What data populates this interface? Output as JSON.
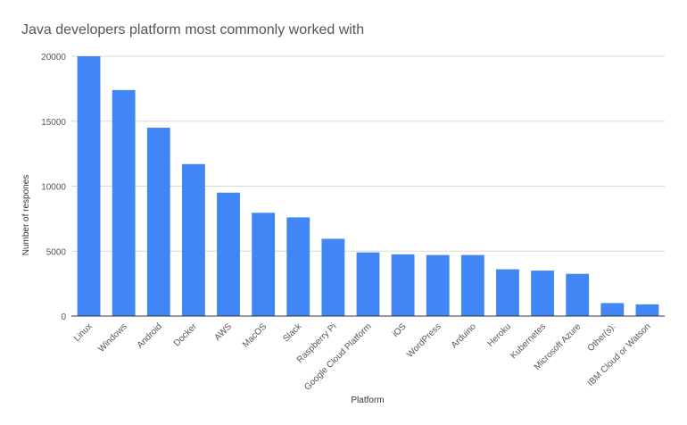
{
  "chart_data": {
    "type": "bar",
    "title": "Java developers platform most commonly worked with",
    "xlabel": "Platform",
    "ylabel": "Number of respones",
    "categories": [
      "Linux",
      "Windows",
      "Android",
      "Docker",
      "AWS",
      "MacOS",
      "Slack",
      "Raspberry Pi",
      "Google Cloud Platform",
      "iOS",
      "WordPress",
      "Arduino",
      "Heroku",
      "Kubernetes",
      "Microsoft Azure",
      "Other(s):",
      "IBM Cloud or Watson"
    ],
    "values": [
      20000,
      17400,
      14500,
      11700,
      9500,
      7950,
      7600,
      5950,
      4900,
      4750,
      4700,
      4700,
      3600,
      3500,
      3250,
      1000,
      900
    ],
    "ylim": [
      0,
      20000
    ],
    "yticks": [
      0,
      5000,
      10000,
      15000,
      20000
    ],
    "grid": true,
    "legend": "none",
    "colors": {
      "bar": "#4285f4"
    }
  }
}
